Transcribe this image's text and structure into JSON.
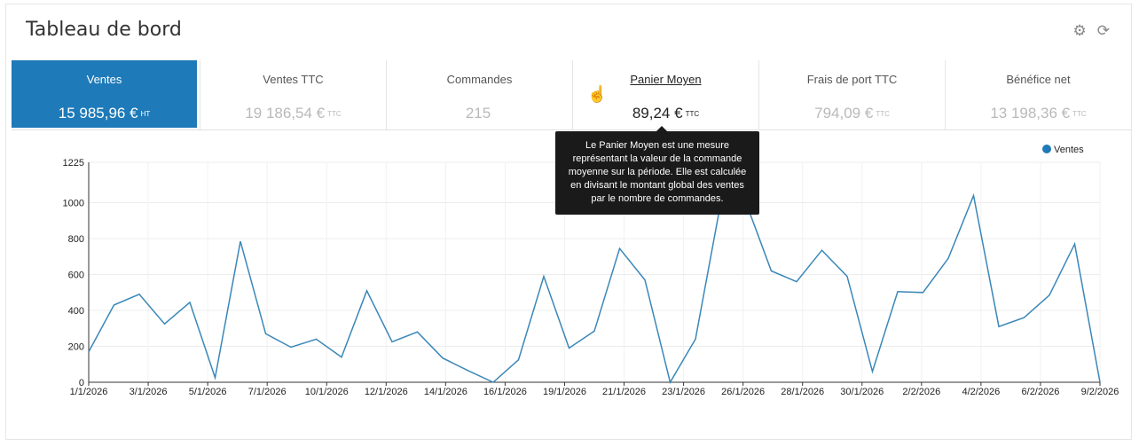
{
  "header": {
    "title": "Tableau de bord",
    "icons": [
      "gear-icon",
      "refresh-icon"
    ]
  },
  "kpis": [
    {
      "label": "Ventes",
      "value": "15 985,96 €",
      "unit": "HT"
    },
    {
      "label": "Ventes TTC",
      "value": "19 186,54 €",
      "unit": "TTC"
    },
    {
      "label": "Commandes",
      "value": "215",
      "unit": ""
    },
    {
      "label": "Panier Moyen",
      "value": "89,24 €",
      "unit": "TTC"
    },
    {
      "label": "Frais de port TTC",
      "value": "794,09 €",
      "unit": "TTC"
    },
    {
      "label": "Bénéfice net",
      "value": "13 198,36 €",
      "unit": "TTC"
    }
  ],
  "tooltip": {
    "lines": [
      "Le Panier Moyen est une mesure",
      "représentant la valeur de la commande",
      "moyenne sur la période. Elle est calculée",
      "en divisant le montant global des ventes",
      "par le nombre de commandes."
    ]
  },
  "colors": {
    "accent": "#1e7ab8",
    "line": "#3a87b8"
  },
  "chart_data": {
    "type": "line",
    "xlabel": "",
    "ylabel": "",
    "ylim": [
      0,
      1225
    ],
    "yticks": [
      0,
      200,
      400,
      600,
      800,
      1000,
      1225
    ],
    "x_tick_labels": [
      "1/1/2026",
      "3/1/2026",
      "5/1/2026",
      "7/1/2026",
      "10/1/2026",
      "12/1/2026",
      "14/1/2026",
      "16/1/2026",
      "19/1/2026",
      "21/1/2026",
      "23/1/2026",
      "26/1/2026",
      "28/1/2026",
      "30/1/2026",
      "2/2/2026",
      "4/2/2026",
      "6/2/2026",
      "9/2/2026"
    ],
    "legend": {
      "position": "top-right",
      "entries": [
        "Ventes"
      ]
    },
    "series": [
      {
        "name": "Ventes",
        "values": [
          170,
          430,
          490,
          325,
          445,
          25,
          785,
          270,
          195,
          240,
          140,
          510,
          225,
          280,
          135,
          65,
          0,
          125,
          590,
          190,
          285,
          745,
          570,
          0,
          240,
          1000,
          1000,
          620,
          560,
          735,
          590,
          60,
          505,
          500,
          690,
          1040,
          310,
          360,
          485,
          770,
          0
        ]
      }
    ]
  }
}
